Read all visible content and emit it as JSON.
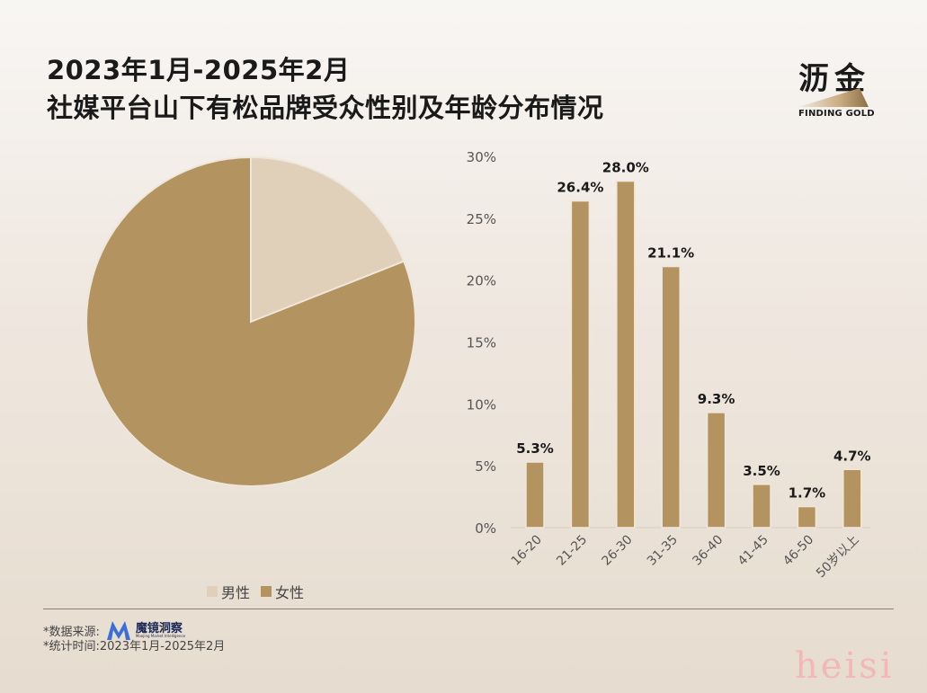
{
  "title": {
    "line1": "2023年1月-2025年2月",
    "line2": "社媒平台山下有松品牌受众性别及年龄分布情况"
  },
  "logo": {
    "cn": "沥金",
    "en": "FINDING GOLD"
  },
  "colors": {
    "male": "#e0cfb9",
    "female": "#b3935f",
    "bar": "#b3935f",
    "bar_border": "#f0e6da"
  },
  "chart_data": [
    {
      "type": "pie",
      "labels": [
        "男性",
        "女性"
      ],
      "values": [
        19,
        81
      ],
      "legend_position": "bottom"
    },
    {
      "type": "bar",
      "categories": [
        "16-20",
        "21-25",
        "26-30",
        "31-35",
        "36-40",
        "41-45",
        "46-50",
        "50岁以上"
      ],
      "values": [
        5.3,
        26.4,
        28.0,
        21.1,
        9.3,
        3.5,
        1.7,
        4.7
      ],
      "data_labels": [
        "5.3%",
        "26.4%",
        "28.0%",
        "21.1%",
        "9.3%",
        "3.5%",
        "1.7%",
        "4.7%"
      ],
      "ylim": [
        0,
        30
      ],
      "yticks": [
        "0%",
        "5%",
        "10%",
        "15%",
        "20%",
        "25%",
        "30%"
      ],
      "grid": false
    }
  ],
  "footer": {
    "source_label": "*数据来源:",
    "source_name": "魔镜洞察",
    "source_name_en": "Moojing Market Intelligence",
    "period": "*统计时间:2023年1月-2025年2月"
  },
  "watermark": "heisi"
}
